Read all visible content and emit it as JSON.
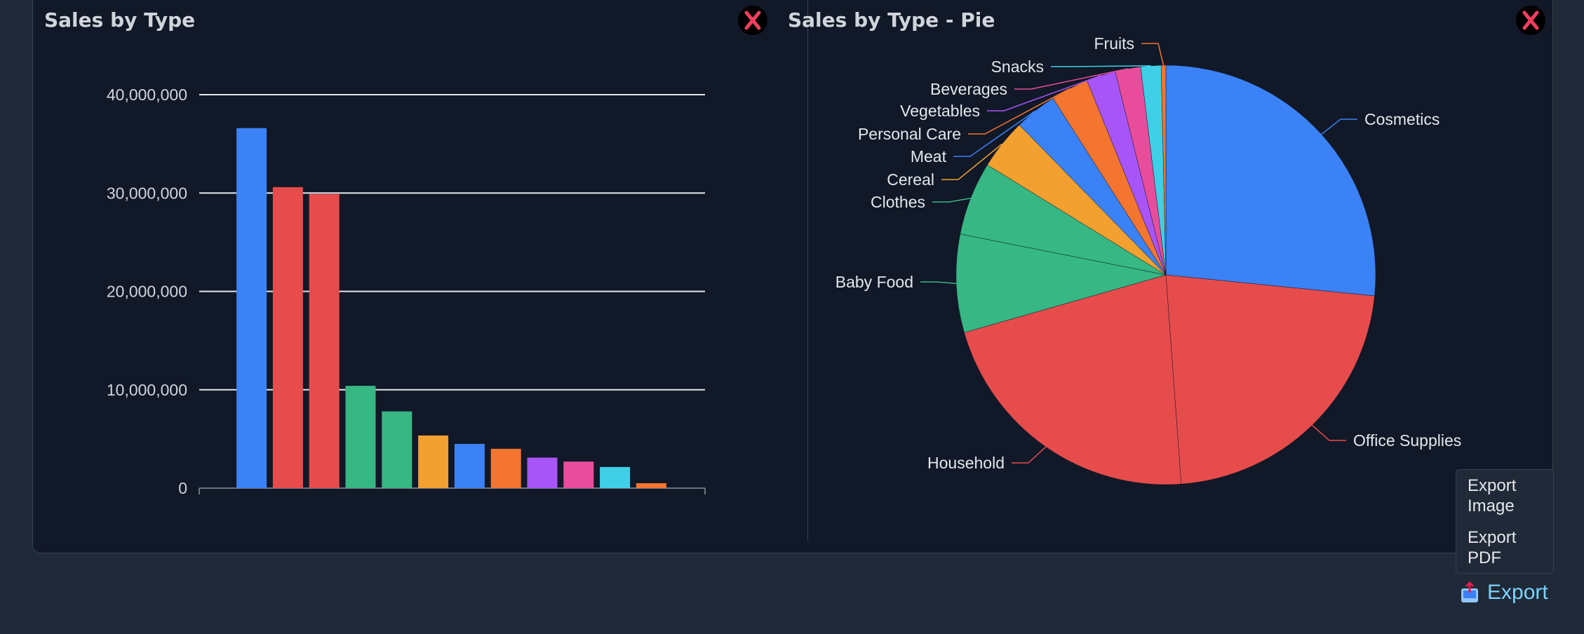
{
  "bar_panel": {
    "title": "Sales by Type",
    "close_icon": "close-x-icon"
  },
  "pie_panel": {
    "title": "Sales by Type - Pie",
    "close_icon": "close-x-icon"
  },
  "export_menu": {
    "items": [
      {
        "label": "Export Image"
      },
      {
        "label": "Export PDF"
      }
    ]
  },
  "export_button": {
    "label": "Export",
    "icon": "export-tray-icon",
    "color": "#7dd3fc"
  },
  "chart_data": [
    {
      "type": "bar",
      "title": "Sales by Type",
      "yticks": [
        "0",
        "10,000,000",
        "20,000,000",
        "30,000,000",
        "40,000,000"
      ],
      "ylim": [
        0,
        40000000
      ],
      "grid": true,
      "values": [
        36600000,
        30600000,
        29900000,
        10400000,
        7800000,
        5350000,
        4500000,
        4000000,
        3100000,
        2700000,
        2150000,
        500000
      ],
      "colors": [
        "#3b82f6",
        "#e74c4c",
        "#e74c4c",
        "#36b784",
        "#36b784",
        "#f2a030",
        "#3b82f6",
        "#f47530",
        "#a855f7",
        "#e84d9c",
        "#3fd0e8",
        "#f47530"
      ]
    },
    {
      "type": "pie",
      "title": "Sales by Type - Pie",
      "categories": [
        "Cosmetics",
        "Office Supplies",
        "Household",
        "Baby Food",
        "Clothes",
        "Cereal",
        "Meat",
        "Personal Care",
        "Vegetables",
        "Beverages",
        "Snacks",
        "Fruits"
      ],
      "values": [
        36600000,
        30600000,
        29900000,
        10400000,
        7800000,
        5350000,
        4500000,
        4000000,
        3100000,
        2700000,
        2150000,
        500000
      ],
      "colors": [
        "#3b82f6",
        "#e74c4c",
        "#e74c4c",
        "#36b784",
        "#36b784",
        "#f2a030",
        "#3b82f6",
        "#f47530",
        "#a855f7",
        "#e84d9c",
        "#3fd0e8",
        "#f47530"
      ]
    }
  ]
}
